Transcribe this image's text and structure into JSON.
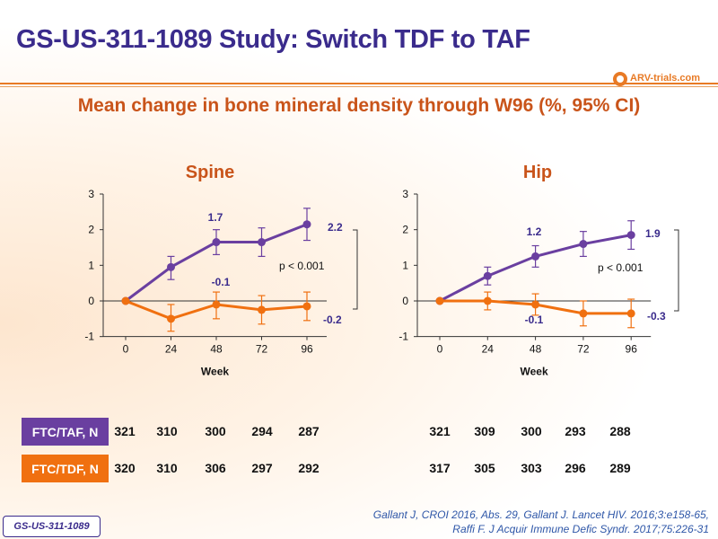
{
  "title": "GS-US-311-1089 Study: Switch TDF to TAF",
  "logo_text": "ARV-trials.com",
  "subtitle": "Mean change in bone mineral density through W96 (%, 95% CI)",
  "colors": {
    "taf": "#6a3fa0",
    "tdf": "#f07010",
    "title": "#3a2b8c",
    "subtitle": "#c9541a",
    "accent": "#e87a25"
  },
  "chart_data": [
    {
      "type": "line",
      "title": "Spine",
      "xlabel": "Week",
      "ylabel": "",
      "x": [
        0,
        24,
        48,
        72,
        96
      ],
      "xticks": [
        "0",
        "24",
        "48",
        "72",
        "96"
      ],
      "yticks": [
        "3",
        "2",
        "1",
        "0",
        "-1"
      ],
      "ylim": [
        -1,
        3
      ],
      "series": [
        {
          "values": [
            0,
            0.95,
            1.65,
            1.65,
            2.15
          ],
          "ci_low": [
            0,
            0.6,
            1.3,
            1.25,
            1.7
          ],
          "ci_high": [
            0,
            1.25,
            2.0,
            2.05,
            2.6
          ]
        },
        {
          "values": [
            0,
            -0.5,
            -0.1,
            -0.25,
            -0.15
          ],
          "ci_low": [
            0,
            -0.85,
            -0.5,
            -0.65,
            -0.55
          ],
          "ci_high": [
            0,
            -0.1,
            0.25,
            0.15,
            0.25
          ]
        }
      ],
      "annotations": [
        "1.7",
        "2.2",
        "-0.1",
        "-0.2",
        "p < 0.001"
      ]
    },
    {
      "type": "line",
      "title": "Hip",
      "xlabel": "Week",
      "ylabel": "",
      "x": [
        0,
        24,
        48,
        72,
        96
      ],
      "xticks": [
        "0",
        "24",
        "48",
        "72",
        "96"
      ],
      "yticks": [
        "3",
        "2",
        "1",
        "0",
        "-1"
      ],
      "ylim": [
        -1,
        3
      ],
      "series": [
        {
          "values": [
            0,
            0.7,
            1.25,
            1.6,
            1.85
          ],
          "ci_low": [
            0,
            0.45,
            0.95,
            1.25,
            1.45
          ],
          "ci_high": [
            0,
            0.95,
            1.55,
            1.95,
            2.25
          ]
        },
        {
          "values": [
            0,
            0.0,
            -0.1,
            -0.35,
            -0.35
          ],
          "ci_low": [
            0,
            -0.25,
            -0.4,
            -0.7,
            -0.75
          ],
          "ci_high": [
            0,
            0.25,
            0.2,
            0.0,
            0.05
          ]
        }
      ],
      "annotations": [
        "1.2",
        "1.9",
        "-0.1",
        "-0.3",
        "p < 0.001"
      ]
    }
  ],
  "n_table": {
    "rows": [
      {
        "label": "FTC/TAF, N",
        "spine": [
          "321",
          "310",
          "300",
          "294",
          "287"
        ],
        "hip": [
          "321",
          "309",
          "300",
          "293",
          "288"
        ]
      },
      {
        "label": "FTC/TDF, N",
        "spine": [
          "320",
          "310",
          "306",
          "297",
          "292"
        ],
        "hip": [
          "317",
          "305",
          "303",
          "296",
          "289"
        ]
      }
    ]
  },
  "footer_tag": "GS-US-311-1089",
  "reference": {
    "line1": "Gallant J, CROI 2016, Abs. 29, Gallant J. Lancet HIV. 2016;3:e158-65,",
    "line2": "Raffi F. J Acquir Immune Defic Syndr. 2017;75:226-31"
  }
}
